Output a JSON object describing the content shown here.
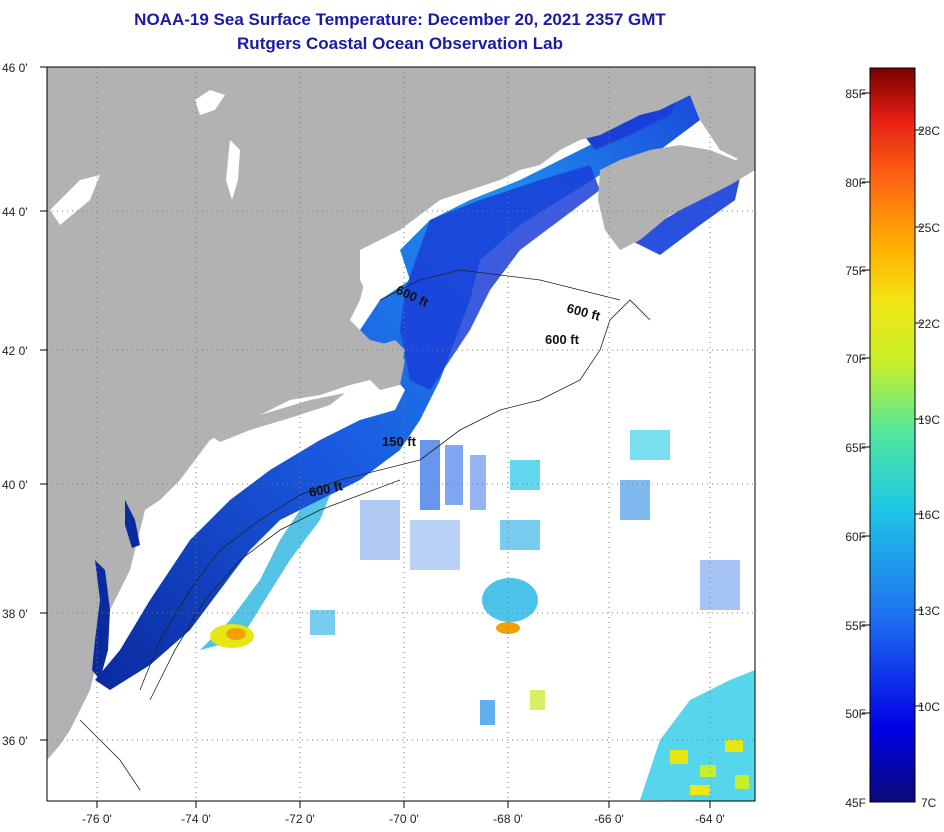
{
  "header": {
    "title": "NOAA-19 Sea Surface Temperature:  December 20, 2021 2357 GMT",
    "subtitle": "Rutgers Coastal Ocean Observation Lab"
  },
  "map": {
    "lon_labels": [
      "-76 0'",
      "-74 0'",
      "-72 0'",
      "-70 0'",
      "-68 0'",
      "-66 0'",
      "-64 0'"
    ],
    "lat_labels": [
      "46 0'",
      "44 0'",
      "42 0'",
      "40 0'",
      "38 0'",
      "36 0'"
    ],
    "contour_labels": [
      "600 ft",
      "600 ft",
      "600 ft",
      "150 ft",
      "600 ft"
    ],
    "colors": {
      "land": "#b2b2b2",
      "ocean_no_data": "#ffffff",
      "grid": "#7a7a7a"
    }
  },
  "legend": {
    "fahrenheit": [
      "85F",
      "80F",
      "75F",
      "70F",
      "65F",
      "60F",
      "55F",
      "50F",
      "45F"
    ],
    "celsius": [
      "28C",
      "25C",
      "22C",
      "19C",
      "16C",
      "13C",
      "10C",
      "7C"
    ],
    "gradient": [
      "#0a0a78",
      "#0000e6",
      "#1e6ef0",
      "#1ec8e6",
      "#50e6a0",
      "#c8f02a",
      "#f0e614",
      "#ffb400",
      "#ff6414",
      "#e61e14",
      "#780000"
    ]
  }
}
